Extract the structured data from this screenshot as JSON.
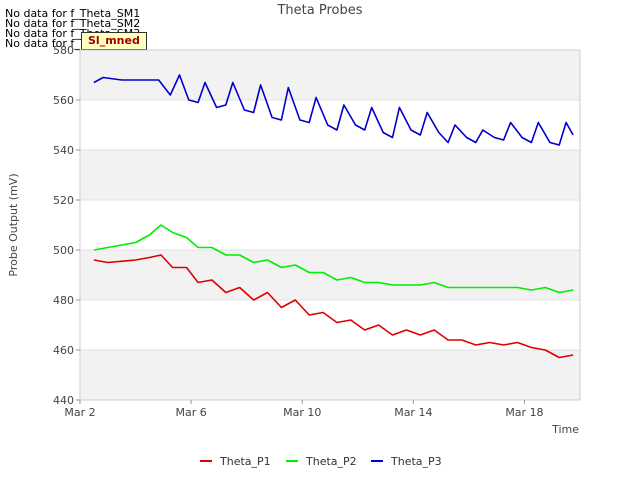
{
  "chart_data": {
    "type": "line",
    "title": "Theta Probes",
    "xlabel": "Time",
    "ylabel": "Probe Output (mV)",
    "ylim": [
      440,
      580
    ],
    "yticks": [
      440,
      460,
      480,
      500,
      520,
      540,
      560,
      580
    ],
    "xlim": [
      "2024-03-02",
      "2024-03-20"
    ],
    "xtick_labels": [
      "Mar 2",
      "Mar 6",
      "Mar 10",
      "Mar 14",
      "Mar 18"
    ],
    "xtick_dates": [
      "2024-03-02",
      "2024-03-06",
      "2024-03-10",
      "2024-03-14",
      "2024-03-18"
    ],
    "banding": "alternating gray bands",
    "legend_placement": "bottom",
    "no_data_messages": [
      "No data for f_Theta_SM1",
      "No data for f_Theta_SM2",
      "No data for f_Theta_SM3",
      "No data for f_Theta_SM4"
    ],
    "badge_label": "Sl_mned",
    "series": [
      {
        "name": "Theta_P1",
        "color": "#dd0000",
        "x": [
          "2024-03-02T12:00",
          "2024-03-03T00:00",
          "2024-03-04T00:00",
          "2024-03-04T12:00",
          "2024-03-04T22:00",
          "2024-03-05T08:00",
          "2024-03-05T20:00",
          "2024-03-06T06:00",
          "2024-03-06T18:00",
          "2024-03-07T06:00",
          "2024-03-07T18:00",
          "2024-03-08T06:00",
          "2024-03-08T18:00",
          "2024-03-09T06:00",
          "2024-03-09T18:00",
          "2024-03-10T06:00",
          "2024-03-10T18:00",
          "2024-03-11T06:00",
          "2024-03-11T18:00",
          "2024-03-12T06:00",
          "2024-03-12T18:00",
          "2024-03-13T06:00",
          "2024-03-13T18:00",
          "2024-03-14T06:00",
          "2024-03-14T18:00",
          "2024-03-15T06:00",
          "2024-03-15T18:00",
          "2024-03-16T06:00",
          "2024-03-16T18:00",
          "2024-03-17T06:00",
          "2024-03-17T18:00",
          "2024-03-18T06:00",
          "2024-03-18T18:00",
          "2024-03-19T06:00",
          "2024-03-19T18:00"
        ],
        "y": [
          496,
          495,
          496,
          497,
          498,
          493,
          493,
          487,
          488,
          483,
          485,
          480,
          483,
          477,
          480,
          474,
          475,
          471,
          472,
          468,
          470,
          466,
          468,
          466,
          468,
          464,
          464,
          462,
          463,
          462,
          463,
          461,
          460,
          457,
          458
        ]
      },
      {
        "name": "Theta_P2",
        "color": "#00ee00",
        "x": [
          "2024-03-02T12:00",
          "2024-03-03T00:00",
          "2024-03-03T12:00",
          "2024-03-04T00:00",
          "2024-03-04T12:00",
          "2024-03-04T22:00",
          "2024-03-05T08:00",
          "2024-03-05T20:00",
          "2024-03-06T06:00",
          "2024-03-06T18:00",
          "2024-03-07T06:00",
          "2024-03-07T18:00",
          "2024-03-08T06:00",
          "2024-03-08T18:00",
          "2024-03-09T06:00",
          "2024-03-09T18:00",
          "2024-03-10T06:00",
          "2024-03-10T18:00",
          "2024-03-11T06:00",
          "2024-03-11T18:00",
          "2024-03-12T06:00",
          "2024-03-12T18:00",
          "2024-03-13T06:00",
          "2024-03-13T18:00",
          "2024-03-14T06:00",
          "2024-03-14T18:00",
          "2024-03-15T06:00",
          "2024-03-15T18:00",
          "2024-03-16T06:00",
          "2024-03-16T18:00",
          "2024-03-17T06:00",
          "2024-03-17T18:00",
          "2024-03-18T06:00",
          "2024-03-18T18:00",
          "2024-03-19T06:00",
          "2024-03-19T18:00"
        ],
        "y": [
          500,
          501,
          502,
          503,
          506,
          510,
          507,
          505,
          501,
          501,
          498,
          498,
          495,
          496,
          493,
          494,
          491,
          491,
          488,
          489,
          487,
          487,
          486,
          486,
          486,
          487,
          485,
          485,
          485,
          485,
          485,
          485,
          484,
          485,
          483,
          484
        ]
      },
      {
        "name": "Theta_P3",
        "color": "#0000cc",
        "x": [
          "2024-03-02T12:00",
          "2024-03-02T20:00",
          "2024-03-03T12:00",
          "2024-03-04T00:00",
          "2024-03-04T20:00",
          "2024-03-05T06:00",
          "2024-03-05T14:00",
          "2024-03-05T22:00",
          "2024-03-06T06:00",
          "2024-03-06T12:00",
          "2024-03-06T22:00",
          "2024-03-07T06:00",
          "2024-03-07T12:00",
          "2024-03-07T22:00",
          "2024-03-08T06:00",
          "2024-03-08T12:00",
          "2024-03-08T22:00",
          "2024-03-09T06:00",
          "2024-03-09T12:00",
          "2024-03-09T22:00",
          "2024-03-10T06:00",
          "2024-03-10T12:00",
          "2024-03-10T22:00",
          "2024-03-11T06:00",
          "2024-03-11T12:00",
          "2024-03-11T22:00",
          "2024-03-12T06:00",
          "2024-03-12T12:00",
          "2024-03-12T22:00",
          "2024-03-13T06:00",
          "2024-03-13T12:00",
          "2024-03-13T22:00",
          "2024-03-14T06:00",
          "2024-03-14T12:00",
          "2024-03-14T22:00",
          "2024-03-15T06:00",
          "2024-03-15T12:00",
          "2024-03-15T22:00",
          "2024-03-16T06:00",
          "2024-03-16T12:00",
          "2024-03-16T22:00",
          "2024-03-17T06:00",
          "2024-03-17T12:00",
          "2024-03-17T22:00",
          "2024-03-18T06:00",
          "2024-03-18T12:00",
          "2024-03-18T22:00",
          "2024-03-19T06:00",
          "2024-03-19T12:00",
          "2024-03-19T18:00"
        ],
        "y": [
          567,
          569,
          568,
          568,
          568,
          562,
          570,
          560,
          559,
          567,
          557,
          558,
          567,
          556,
          555,
          566,
          553,
          552,
          565,
          552,
          551,
          561,
          550,
          548,
          558,
          550,
          548,
          557,
          547,
          545,
          557,
          548,
          546,
          555,
          547,
          543,
          550,
          545,
          543,
          548,
          545,
          544,
          551,
          545,
          543,
          551,
          543,
          542,
          551,
          546
        ]
      }
    ]
  }
}
